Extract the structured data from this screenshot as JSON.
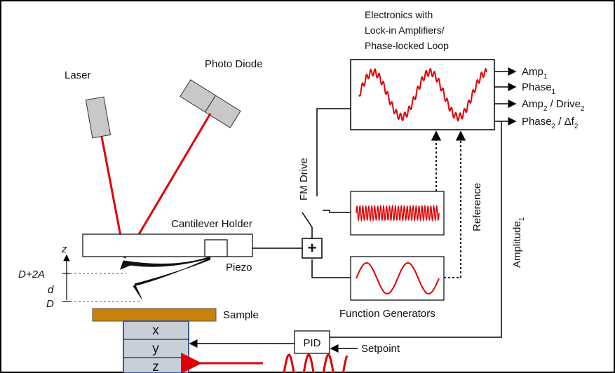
{
  "title_lines": [
    "Electronics with",
    "Lock-in Amplifiers/",
    "Phase-locked Loop"
  ],
  "labels": {
    "laser": "Laser",
    "photo_diode": "Photo Diode",
    "fm_drive": "FM Drive",
    "reference": "Reference",
    "amplitude": "Amplitude",
    "amplitude_sub": "1",
    "cantilever_holder": "Cantilever Holder",
    "piezo": "Piezo",
    "plus": "+",
    "function_generators": "Function Generators",
    "sample": "Sample",
    "pid": "PID",
    "setpoint": "Setpoint",
    "z_axis": "z",
    "d_2a": "D+2A",
    "d_small": "d",
    "d_big": "D"
  },
  "outputs": [
    {
      "main": "Amp",
      "sub": "1",
      "rest": ""
    },
    {
      "main": "Phase",
      "sub": "1",
      "rest": ""
    },
    {
      "main": "Amp",
      "sub": "2",
      "rest": " / Drive",
      "sub2": "2"
    },
    {
      "main": "Phase",
      "sub": "2",
      "rest": " / Δf",
      "sub2": "2"
    }
  ],
  "scanner_axes": [
    "x",
    "y",
    "z"
  ],
  "colors": {
    "laser_beam": "#e00000",
    "signal": "#e00000",
    "sample": "#c8820a",
    "scanner_fill": "#c9cfd8",
    "scanner_border": "#3a5a9a",
    "arrow_red": "#e00000"
  }
}
